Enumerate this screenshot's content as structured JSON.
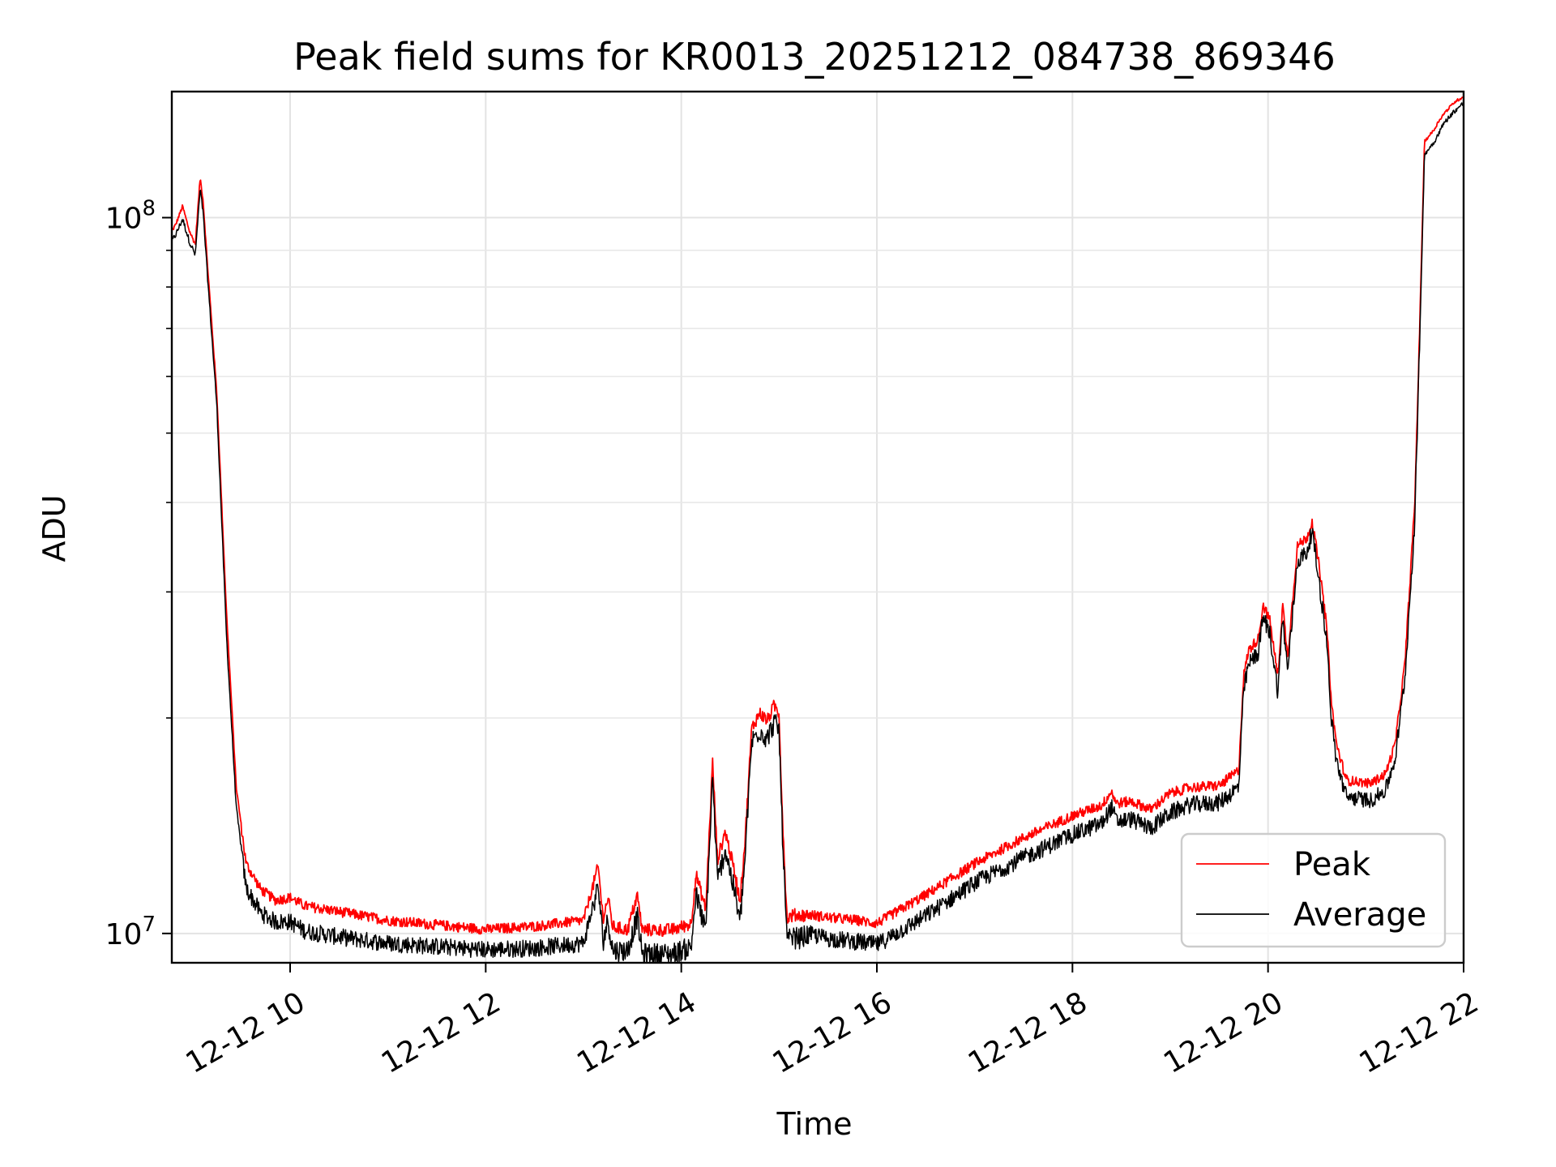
{
  "chart_data": {
    "type": "line",
    "title": "Peak field sums for KR0013_20251212_084738_869346",
    "xlabel": "Time",
    "ylabel": "ADU",
    "yscale": "log",
    "ylim": [
      9100000,
      150000000
    ],
    "xlim": [
      "12-12 08:47",
      "12-12 22:00"
    ],
    "x_unit": "hours since 12-12 00:00",
    "x_range_hours": [
      8.79,
      22.0
    ],
    "grid": true,
    "legend_position": "lower-right",
    "y_major_ticks": [
      {
        "value": 10000000,
        "label_base": "10",
        "label_exp": "7"
      },
      {
        "value": 100000000,
        "label_base": "10",
        "label_exp": "8"
      }
    ],
    "y_minor_ticks": [
      20000000,
      30000000,
      40000000,
      50000000,
      60000000,
      70000000,
      80000000,
      90000000
    ],
    "x_ticks": [
      {
        "value": 10,
        "label": "12-12 10"
      },
      {
        "value": 12,
        "label": "12-12 12"
      },
      {
        "value": 14,
        "label": "12-12 14"
      },
      {
        "value": 16,
        "label": "12-12 16"
      },
      {
        "value": 18,
        "label": "12-12 18"
      },
      {
        "value": 20,
        "label": "12-12 20"
      },
      {
        "value": 22,
        "label": "12-12 22"
      }
    ],
    "series": [
      {
        "name": "Peak",
        "color": "#ff0000"
      },
      {
        "name": "Average",
        "color": "#000000"
      }
    ],
    "trend": {
      "x": [
        8.79,
        8.83,
        8.9,
        8.97,
        9.03,
        9.08,
        9.11,
        9.15,
        9.25,
        9.35,
        9.45,
        9.55,
        9.7,
        9.85,
        10.0,
        10.15,
        10.5,
        11.0,
        11.5,
        12.0,
        12.5,
        13.0,
        13.15,
        13.2,
        13.25,
        13.3,
        13.45,
        13.55,
        13.6,
        13.65,
        13.9,
        14.1,
        14.15,
        14.25,
        14.32,
        14.37,
        14.45,
        14.55,
        14.6,
        14.65,
        14.72,
        14.8,
        14.88,
        14.95,
        15.0,
        15.03,
        15.08,
        15.15,
        15.22,
        15.3,
        15.5,
        15.8,
        16.0,
        16.5,
        17.0,
        17.5,
        18.0,
        18.3,
        18.4,
        18.45,
        18.6,
        18.8,
        19.0,
        19.2,
        19.5,
        19.7,
        19.75,
        19.8,
        19.9,
        19.95,
        20.02,
        20.1,
        20.15,
        20.2,
        20.3,
        20.4,
        20.45,
        20.52,
        20.6,
        20.65,
        20.7,
        20.8,
        20.9,
        21.05,
        21.2,
        21.3,
        21.4,
        21.5,
        21.55,
        21.6,
        21.7,
        21.75,
        21.8,
        21.9,
        22.0
      ],
      "peak": [
        96000000,
        98000000,
        104000000,
        96000000,
        92000000,
        114000000,
        106000000,
        88000000,
        57000000,
        28000000,
        16000000,
        12600000,
        11600000,
        11200000,
        11300000,
        11000000,
        10800000,
        10500000,
        10350000,
        10200000,
        10300000,
        10500000,
        12500000,
        10600000,
        11300000,
        10300000,
        10200000,
        11400000,
        10200000,
        10200000,
        10200000,
        10400000,
        12200000,
        10900000,
        17500000,
        12800000,
        14000000,
        12200000,
        11200000,
        13500000,
        19500000,
        20500000,
        20000000,
        21000000,
        20500000,
        15200000,
        10600000,
        10700000,
        10700000,
        10700000,
        10600000,
        10500000,
        10400000,
        11400000,
        12600000,
        13700000,
        14700000,
        15200000,
        15900000,
        15300000,
        15400000,
        15000000,
        15800000,
        16100000,
        16200000,
        17000000,
        23000000,
        25000000,
        26000000,
        29000000,
        27500000,
        23000000,
        29000000,
        24500000,
        35000000,
        36000000,
        38000000,
        33000000,
        27000000,
        21000000,
        18500000,
        16500000,
        16400000,
        16300000,
        16800000,
        18500000,
        24000000,
        40000000,
        70000000,
        128000000,
        133000000,
        137000000,
        140000000,
        145000000,
        148000000
      ],
      "average": [
        93000000,
        95000000,
        100000000,
        93000000,
        89000000,
        110000000,
        102000000,
        85000000,
        55000000,
        26000000,
        15000000,
        11700000,
        10800000,
        10500000,
        10500000,
        10200000,
        10000000,
        9800000,
        9700000,
        9600000,
        9650000,
        9800000,
        11800000,
        9900000,
        10600000,
        9600000,
        9600000,
        10700000,
        9500000,
        9500000,
        9500000,
        9700000,
        11500000,
        10200000,
        16800000,
        12000000,
        13300000,
        11500000,
        10500000,
        12800000,
        18800000,
        19500000,
        19000000,
        20000000,
        19500000,
        14500000,
        9900000,
        10000000,
        10000000,
        10100000,
        9950000,
        9850000,
        9750000,
        10700000,
        11900000,
        12900000,
        13900000,
        14400000,
        15200000,
        14500000,
        14600000,
        14200000,
        14900000,
        15300000,
        15400000,
        16200000,
        22000000,
        24000000,
        25000000,
        28000000,
        26500000,
        22000000,
        28000000,
        23500000,
        33500000,
        34500000,
        37000000,
        31500000,
        26000000,
        20000000,
        17600000,
        15700000,
        15600000,
        15500000,
        16000000,
        17700000,
        23000000,
        38000000,
        67000000,
        123000000,
        128000000,
        132000000,
        136000000,
        141000000,
        145000000
      ]
    }
  }
}
